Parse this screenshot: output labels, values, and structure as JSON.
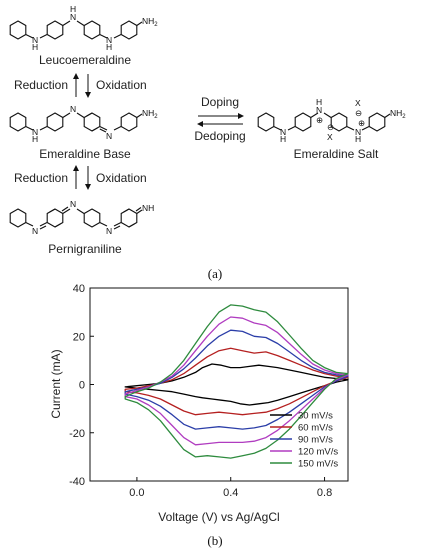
{
  "scheme": {
    "compounds": {
      "leucoemeraldine": "Leucoemeraldine",
      "emeraldine_base": "Emeraldine Base",
      "emeraldine_salt": "Emeraldine Salt",
      "pernigraniline": "Pernigraniline"
    },
    "arrows": {
      "reduction": "Reduction",
      "oxidation": "Oxidation",
      "doping": "Doping",
      "dedoping": "Dedoping"
    },
    "atoms": {
      "nh": "N",
      "h": "H",
      "nh2": "NH",
      "two": "2",
      "n": "N",
      "x": "X",
      "plus": "⊕",
      "minus": "⊖",
      "nh_end": "NH"
    },
    "caption_a": "(a)"
  },
  "plot": {
    "caption_b": "(b)",
    "chart_data": {
      "type": "line",
      "xlabel": "Voltage (V) vs Ag/AgCl",
      "ylabel": "Current (mA)",
      "xlim": [
        -0.2,
        0.9
      ],
      "ylim": [
        -40,
        40
      ],
      "xticks": [
        0.0,
        0.4,
        0.8
      ],
      "xtick_labels": [
        "0.0",
        "0.4",
        "0.8"
      ],
      "yticks": [
        -40,
        -20,
        0,
        20,
        40
      ],
      "ytick_labels": [
        "-40",
        "-20",
        "0",
        "20",
        "40"
      ],
      "legend_position": "lower-right",
      "series": [
        {
          "name": "30 mV/s",
          "color": "#000000",
          "x": [
            -0.05,
            0.0,
            0.05,
            0.1,
            0.15,
            0.2,
            0.25,
            0.28,
            0.32,
            0.36,
            0.4,
            0.44,
            0.48,
            0.52,
            0.56,
            0.6,
            0.65,
            0.7,
            0.75,
            0.8,
            0.85,
            0.9,
            0.85,
            0.8,
            0.75,
            0.7,
            0.65,
            0.6,
            0.56,
            0.52,
            0.48,
            0.44,
            0.4,
            0.36,
            0.32,
            0.28,
            0.25,
            0.2,
            0.15,
            0.1,
            0.05,
            0.0,
            -0.05
          ],
          "y": [
            -1.0,
            -0.5,
            0.0,
            0.5,
            1.5,
            3.0,
            5.0,
            7.0,
            8.5,
            8.0,
            7.0,
            7.0,
            7.5,
            8.0,
            7.5,
            7.0,
            6.0,
            5.0,
            4.0,
            3.0,
            2.5,
            2.0,
            1.0,
            -0.5,
            -2.0,
            -3.5,
            -5.0,
            -6.5,
            -7.5,
            -8.0,
            -8.5,
            -8.0,
            -7.0,
            -6.5,
            -6.0,
            -5.5,
            -5.0,
            -4.0,
            -3.0,
            -2.5,
            -2.0,
            -1.5,
            -1.0
          ]
        },
        {
          "name": "60 mV/s",
          "color": "#b52020",
          "x": [
            -0.05,
            0.0,
            0.05,
            0.1,
            0.15,
            0.2,
            0.25,
            0.3,
            0.35,
            0.4,
            0.45,
            0.5,
            0.55,
            0.6,
            0.65,
            0.7,
            0.75,
            0.8,
            0.85,
            0.9,
            0.85,
            0.8,
            0.75,
            0.7,
            0.65,
            0.6,
            0.55,
            0.5,
            0.45,
            0.4,
            0.35,
            0.3,
            0.25,
            0.2,
            0.15,
            0.1,
            0.05,
            0.0,
            -0.05
          ],
          "y": [
            -2.0,
            -1.5,
            -0.5,
            0.5,
            2.0,
            4.5,
            8.0,
            11.5,
            14.0,
            15.0,
            14.0,
            13.0,
            13.5,
            12.0,
            10.0,
            8.0,
            6.0,
            4.5,
            3.5,
            3.0,
            1.5,
            -0.5,
            -3.0,
            -5.5,
            -8.0,
            -10.0,
            -11.5,
            -12.0,
            -12.5,
            -12.0,
            -11.5,
            -12.0,
            -12.5,
            -11.0,
            -8.5,
            -6.0,
            -4.5,
            -3.5,
            -3.0
          ]
        },
        {
          "name": "90 mV/s",
          "color": "#2b3ea8",
          "x": [
            -0.05,
            0.0,
            0.05,
            0.1,
            0.15,
            0.2,
            0.25,
            0.3,
            0.35,
            0.4,
            0.45,
            0.5,
            0.55,
            0.6,
            0.65,
            0.7,
            0.75,
            0.8,
            0.85,
            0.9,
            0.85,
            0.8,
            0.75,
            0.7,
            0.65,
            0.6,
            0.55,
            0.5,
            0.45,
            0.4,
            0.35,
            0.3,
            0.25,
            0.2,
            0.15,
            0.1,
            0.05,
            0.0,
            -0.05
          ],
          "y": [
            -3.0,
            -2.0,
            -1.0,
            0.5,
            3.0,
            6.5,
            11.0,
            16.0,
            20.0,
            22.5,
            22.0,
            20.0,
            19.5,
            17.0,
            13.5,
            10.0,
            7.0,
            5.0,
            4.0,
            3.5,
            1.5,
            -1.0,
            -4.5,
            -8.0,
            -11.5,
            -14.5,
            -17.0,
            -18.0,
            -18.5,
            -18.0,
            -17.5,
            -18.0,
            -18.5,
            -16.5,
            -12.5,
            -9.0,
            -6.5,
            -5.0,
            -4.0
          ]
        },
        {
          "name": "120 mV/s",
          "color": "#b03cc0",
          "x": [
            -0.05,
            0.0,
            0.05,
            0.1,
            0.15,
            0.2,
            0.25,
            0.3,
            0.35,
            0.4,
            0.45,
            0.5,
            0.55,
            0.6,
            0.65,
            0.7,
            0.75,
            0.8,
            0.85,
            0.9,
            0.85,
            0.8,
            0.75,
            0.7,
            0.65,
            0.6,
            0.55,
            0.5,
            0.45,
            0.4,
            0.35,
            0.3,
            0.25,
            0.2,
            0.15,
            0.1,
            0.05,
            0.0,
            -0.05
          ],
          "y": [
            -4.0,
            -2.5,
            -1.0,
            1.0,
            3.5,
            8.0,
            14.0,
            20.0,
            25.0,
            28.0,
            27.5,
            25.5,
            24.5,
            21.5,
            17.0,
            12.5,
            8.5,
            6.0,
            4.5,
            4.0,
            2.0,
            -1.5,
            -6.0,
            -10.5,
            -15.0,
            -19.0,
            -22.0,
            -23.5,
            -24.0,
            -24.0,
            -24.0,
            -24.5,
            -25.0,
            -22.0,
            -17.0,
            -12.0,
            -8.5,
            -6.0,
            -5.0
          ]
        },
        {
          "name": "150 mV/s",
          "color": "#2e8b3e",
          "x": [
            -0.05,
            0.0,
            0.05,
            0.1,
            0.15,
            0.2,
            0.25,
            0.3,
            0.35,
            0.4,
            0.45,
            0.5,
            0.55,
            0.6,
            0.65,
            0.7,
            0.75,
            0.8,
            0.85,
            0.9,
            0.85,
            0.8,
            0.75,
            0.7,
            0.65,
            0.6,
            0.55,
            0.5,
            0.45,
            0.4,
            0.35,
            0.3,
            0.25,
            0.2,
            0.15,
            0.1,
            0.05,
            0.0,
            -0.05
          ],
          "y": [
            -5.0,
            -3.0,
            -1.5,
            1.0,
            4.5,
            10.0,
            17.0,
            24.0,
            30.0,
            33.0,
            32.5,
            31.0,
            30.0,
            26.0,
            20.5,
            15.0,
            10.0,
            7.0,
            5.0,
            4.5,
            2.5,
            -2.0,
            -7.5,
            -13.0,
            -18.5,
            -23.0,
            -26.5,
            -28.5,
            -29.5,
            -30.5,
            -30.0,
            -29.5,
            -30.0,
            -27.0,
            -21.0,
            -15.0,
            -10.5,
            -7.5,
            -6.0
          ]
        }
      ]
    }
  }
}
